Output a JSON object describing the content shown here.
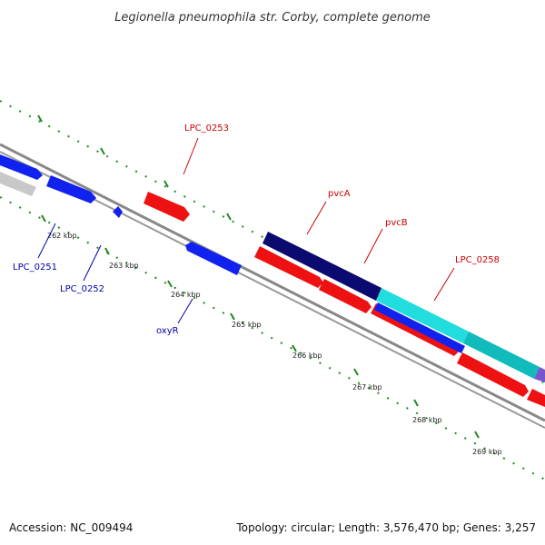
{
  "title": "Legionella pneumophila str. Corby, complete genome",
  "footer": {
    "accession": "Accession: NC_009494",
    "topology": "Topology: circular; Length: 3,576,470 bp; Genes: 3,257"
  },
  "colors": {
    "forward_gene": "#ee1111",
    "reverse_gene": "#1122ee",
    "dark_gene": "#0a0a70",
    "cyan_gene": "#22dddd",
    "teal_gene": "#11bbbb",
    "gray_gene": "#c8c8c8",
    "purple_gene": "#7755cc",
    "backbone": "#888888",
    "tick": "#228822",
    "label_forward": "#cc0000",
    "label_reverse": "#0000aa"
  },
  "ticks": [
    {
      "label": "262 kbp"
    },
    {
      "label": "263 kbp"
    },
    {
      "label": "264 kbp"
    },
    {
      "label": "265 kbp"
    },
    {
      "label": "266 kbp"
    },
    {
      "label": "267 kbp"
    },
    {
      "label": "268 kbp"
    },
    {
      "label": "269 kbp"
    }
  ],
  "gene_labels": {
    "lpc0253": "LPC_0253",
    "pvcA": "pvcA",
    "pvcB": "pvcB",
    "lpc0258": "LPC_0258",
    "lpc0251": "LPC_0251",
    "lpc0252": "LPC_0252",
    "oxyR": "oxyR"
  }
}
